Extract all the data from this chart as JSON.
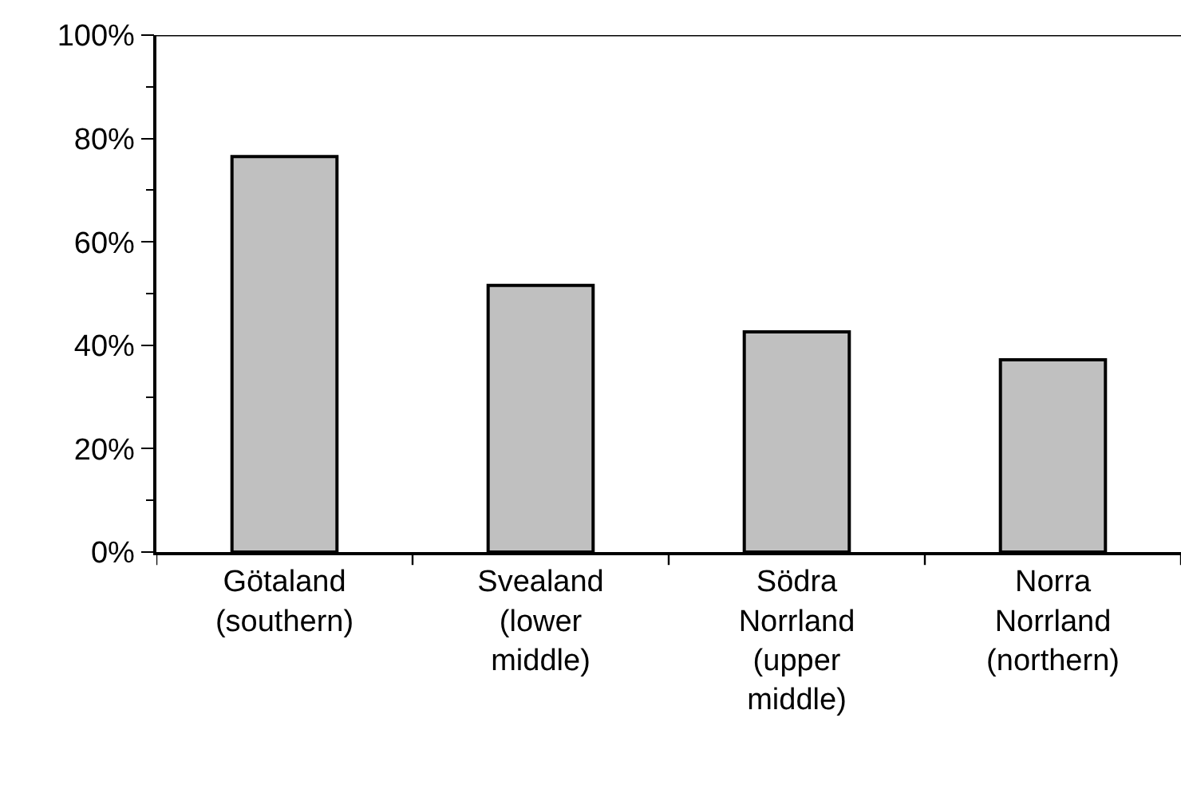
{
  "chart_data": {
    "type": "bar",
    "categories": [
      "Götaland\n(southern)",
      "Svealand\n(lower\nmiddle)",
      "Södra\nNorrland\n(upper\nmiddle)",
      "Norra\nNorrland\n(northern)"
    ],
    "values": [
      76.5,
      51.6,
      42.6,
      37.2
    ],
    "color": "#c0c0c0",
    "ylim": [
      0,
      100
    ],
    "yticks": [
      {
        "value": 0,
        "label": "0%"
      },
      {
        "value": 20,
        "label": "20%"
      },
      {
        "value": 40,
        "label": "40%"
      },
      {
        "value": 60,
        "label": "60%"
      },
      {
        "value": 80,
        "label": "80%"
      },
      {
        "value": 100,
        "label": "100%"
      }
    ]
  }
}
